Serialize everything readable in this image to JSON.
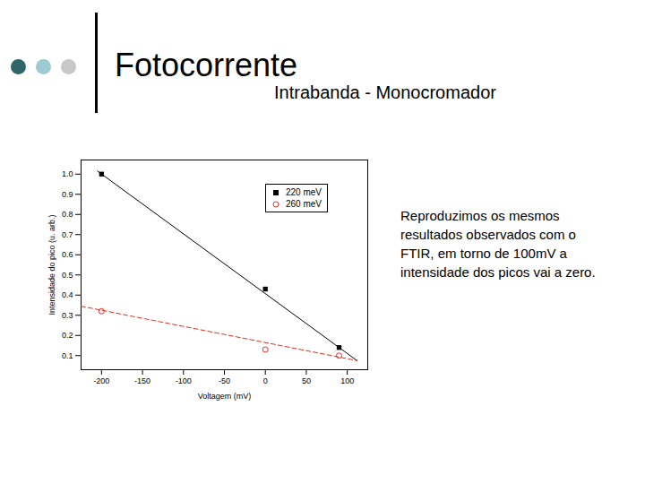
{
  "chart_data": {
    "type": "scatter",
    "title": "Fotocorrente",
    "subtitle": "Intrabanda - Monocromador",
    "annotations": [
      "Reproduzimos os mesmos",
      "resultados observados com o",
      "FTIR, em torno de 100mV a",
      "intensidade dos picos vai a zero."
    ],
    "x_label": "Voltagem (mV)",
    "y_label": "Intensidade do pico (u. arb.)",
    "xlim": [
      -225,
      125
    ],
    "xticks": [
      -200,
      -150,
      -100,
      -50,
      0,
      50,
      100
    ],
    "ylim": [
      0.03,
      1.07
    ],
    "yticks": [
      {
        "value": 0.1,
        "label": "0.1"
      },
      {
        "value": 0.2,
        "label": "0.2"
      },
      {
        "value": 0.3,
        "label": "0.3"
      },
      {
        "value": 0.4,
        "label": "0.4"
      },
      {
        "value": 0.5,
        "label": "0.5"
      },
      {
        "value": 0.6,
        "label": "0.6"
      },
      {
        "value": 0.7,
        "label": "0.7"
      },
      {
        "value": 0.8,
        "label": "0.8"
      },
      {
        "value": 0.9,
        "label": "0.9"
      },
      {
        "value": 1.0,
        "label": "1.0"
      }
    ],
    "grid": false,
    "legend": "upper right",
    "series": [
      {
        "name": "220 meV",
        "color": "#000000",
        "marker": "square",
        "line_style": "solid",
        "x": [
          -200,
          0,
          90
        ],
        "values": [
          1.0,
          0.43,
          0.14
        ],
        "fit": {
          "x": [
            -205,
            112
          ],
          "values": [
            1.015,
            0.075
          ]
        }
      },
      {
        "name": "260 meV",
        "color": "#e03020",
        "marker": "circle_open",
        "line_style": "dashed",
        "x": [
          -200,
          0,
          90
        ],
        "values": [
          0.32,
          0.13,
          0.1
        ],
        "fit": {
          "x": [
            -225,
            112
          ],
          "values": [
            0.345,
            0.075
          ]
        }
      }
    ]
  }
}
